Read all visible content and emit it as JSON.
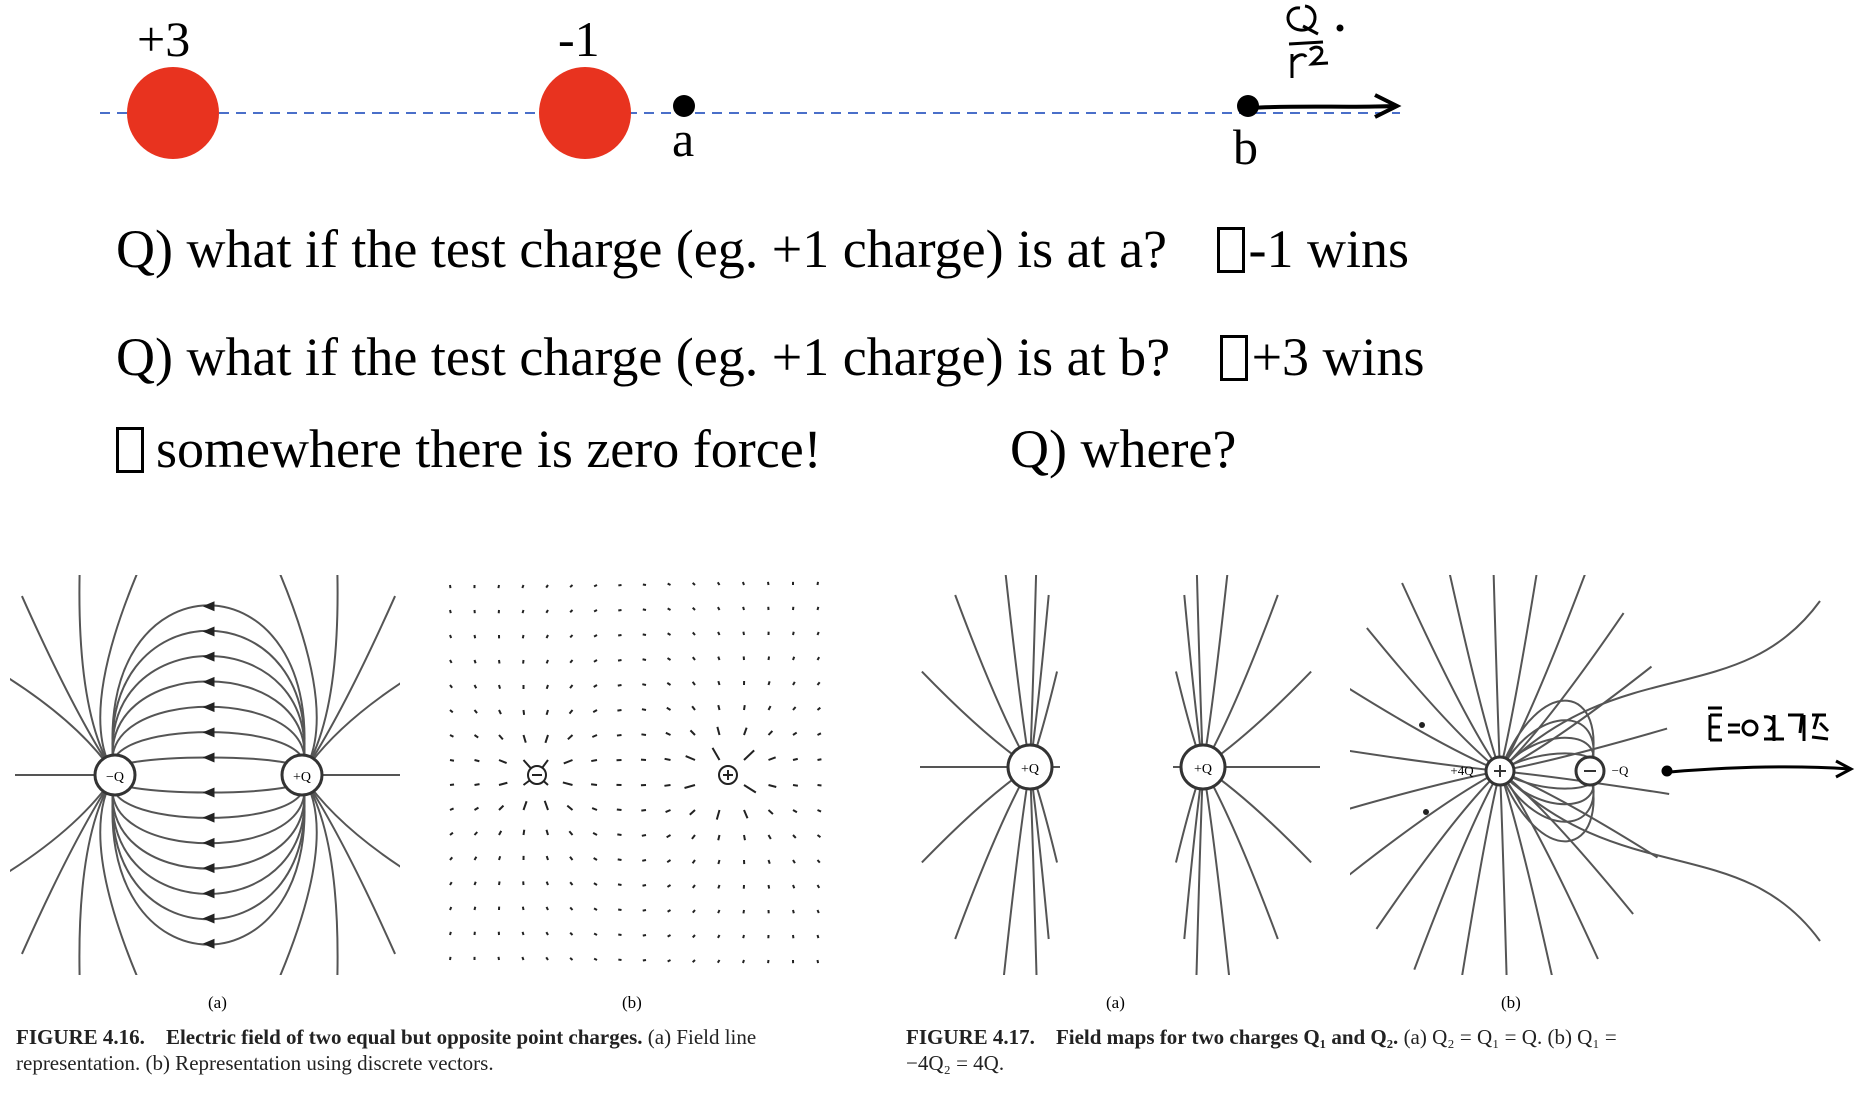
{
  "top_diagram": {
    "charge1_label": "+3",
    "charge2_label": "-1",
    "point_a_label": "a",
    "point_b_label": "b",
    "charge_color": "#e8331f",
    "axis_color": "#4a6fc9"
  },
  "questions": {
    "q1_text": "Q) what if the test charge (eg. +1 charge) is at a?",
    "q1_answer": "-1 wins",
    "q2_text": "Q) what if the test charge (eg. +1 charge) is at b?",
    "q2_answer": "+3 wins",
    "q3_text": "somewhere there is zero force!",
    "q3_question": "Q) where?"
  },
  "figure_416": {
    "panel_a": "(a)",
    "panel_b": "(b)",
    "charge_left": "−Q",
    "charge_right": "+Q",
    "caption_label": "FIGURE 4.16.",
    "caption_title": "Electric field of two equal but opposite point charges.",
    "caption_rest": "(a) Field line representation. (b) Representation using discrete vectors."
  },
  "figure_417": {
    "panel_a": "(a)",
    "panel_b": "(b)",
    "charge_a_left": "+Q",
    "charge_a_right": "+Q",
    "charge_b_left": "+4Q",
    "charge_b_right": "−Q",
    "caption_label": "FIGURE 4.17.",
    "caption_title": "Field maps for two charges Q₁ and Q₂.",
    "caption_rest": "(a) Q₂ = Q₁ = Q. (b) Q₁ = −4Q₂ = 4Q."
  }
}
